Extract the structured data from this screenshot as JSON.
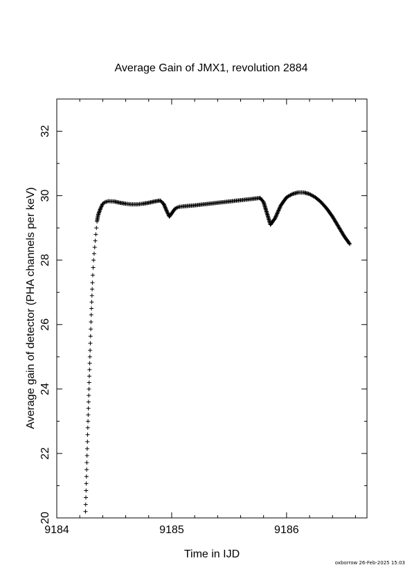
{
  "footer": {
    "credit": "oxborrow 26-Feb-2025 15:03"
  },
  "chart_data": {
    "type": "scatter",
    "marker": "plus",
    "marker_color": "#000000",
    "title": "Average Gain of JMX1, revolution 2884",
    "xlabel": "Time in IJD",
    "ylabel": "Average gain of detector (PHA channels per keV)",
    "xlim": [
      9184,
      9186.7
    ],
    "ylim": [
      20,
      33
    ],
    "xticks": [
      9184,
      9185,
      9186
    ],
    "yticks": [
      20,
      22,
      24,
      26,
      28,
      30,
      32
    ],
    "grid": false,
    "legend": "none",
    "series": [
      {
        "x": [
          9184.25,
          9184.26,
          9184.27,
          9184.28,
          9184.29,
          9184.3,
          9184.31,
          9184.32,
          9184.33,
          9184.34,
          9184.35,
          9184.36,
          9184.38,
          9184.4,
          9184.42,
          9184.45,
          9184.5,
          9184.55,
          9184.6,
          9184.65,
          9184.7,
          9184.75,
          9184.8,
          9184.85,
          9184.9,
          9184.93,
          9184.96,
          9184.98,
          9185.0,
          9185.03,
          9185.06,
          9185.1,
          9185.2,
          9185.3,
          9185.4,
          9185.5,
          9185.6,
          9185.7,
          9185.77,
          9185.8,
          9185.83,
          9185.86,
          9185.9,
          9185.95,
          9186.0,
          9186.05,
          9186.1,
          9186.15,
          9186.2,
          9186.25,
          9186.3,
          9186.35,
          9186.4,
          9186.45,
          9186.5,
          9186.55
        ],
        "y": [
          20.2,
          21.5,
          22.8,
          24.0,
          25.2,
          26.3,
          27.3,
          28.0,
          28.4,
          28.8,
          29.2,
          29.4,
          29.6,
          29.75,
          29.8,
          29.83,
          29.82,
          29.78,
          29.75,
          29.73,
          29.73,
          29.75,
          29.78,
          29.82,
          29.85,
          29.75,
          29.5,
          29.35,
          29.45,
          29.6,
          29.65,
          29.67,
          29.7,
          29.74,
          29.78,
          29.82,
          29.86,
          29.9,
          29.93,
          29.8,
          29.45,
          29.1,
          29.3,
          29.7,
          29.95,
          30.05,
          30.1,
          30.1,
          30.05,
          29.95,
          29.8,
          29.6,
          29.35,
          29.05,
          28.75,
          28.5
        ]
      }
    ]
  }
}
